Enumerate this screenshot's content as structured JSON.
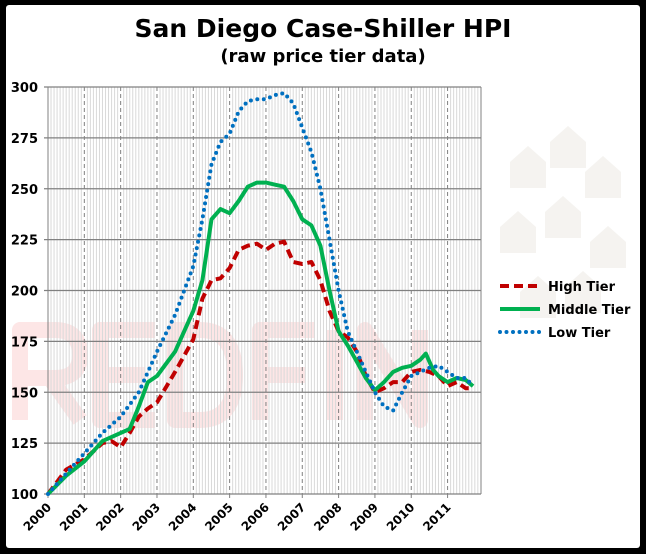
{
  "chart_data": {
    "type": "line",
    "title": "San Diego Case-Shiller HPI",
    "subtitle": "(raw price tier data)",
    "xlabel": "",
    "ylabel": "",
    "xlim": [
      2000,
      2011.92
    ],
    "ylim": [
      100,
      300
    ],
    "x_ticks": [
      "2000",
      "2001",
      "2002",
      "2003",
      "2004",
      "2005",
      "2006",
      "2007",
      "2008",
      "2009",
      "2010",
      "2011"
    ],
    "y_ticks": [
      100,
      125,
      150,
      175,
      200,
      225,
      250,
      275,
      300
    ],
    "grid": "horizontal major lines, dashed yearly and light monthly vertical lines",
    "legend": "right",
    "watermark": "REDFIN",
    "series": [
      {
        "name": "High Tier",
        "color": "#c00000",
        "style": "dashed",
        "x": [
          2000,
          2000.5,
          2001,
          2001.5,
          2001.75,
          2002,
          2002.25,
          2002.5,
          2002.75,
          2003,
          2003.5,
          2004,
          2004.25,
          2004.5,
          2004.75,
          2005,
          2005.25,
          2005.5,
          2005.75,
          2006,
          2006.25,
          2006.5,
          2006.75,
          2007,
          2007.25,
          2007.5,
          2007.75,
          2008,
          2008.25,
          2008.5,
          2008.75,
          2009,
          2009.25,
          2009.5,
          2009.75,
          2010,
          2010.25,
          2010.5,
          2010.75,
          2011,
          2011.25,
          2011.5,
          2011.7
        ],
        "y": [
          100,
          112,
          117,
          125,
          126,
          123,
          130,
          138,
          142,
          145,
          160,
          176,
          196,
          205,
          206,
          211,
          220,
          222,
          223,
          220,
          223,
          224,
          214,
          213,
          214,
          205,
          190,
          180,
          177,
          170,
          158,
          150,
          152,
          155,
          155,
          160,
          161,
          160,
          158,
          153,
          155,
          152,
          152
        ]
      },
      {
        "name": "Middle Tier",
        "color": "#00b050",
        "style": "solid",
        "x": [
          2000,
          2000.5,
          2001,
          2001.5,
          2002,
          2002.25,
          2002.5,
          2002.75,
          2003,
          2003.5,
          2004,
          2004.25,
          2004.5,
          2004.75,
          2005,
          2005.25,
          2005.5,
          2005.75,
          2006,
          2006.25,
          2006.5,
          2006.75,
          2007,
          2007.25,
          2007.5,
          2007.75,
          2008,
          2008.25,
          2008.5,
          2008.75,
          2009,
          2009.25,
          2009.5,
          2009.75,
          2010,
          2010.25,
          2010.4,
          2010.6,
          2010.75,
          2011,
          2011.25,
          2011.5,
          2011.7
        ],
        "y": [
          100,
          109,
          116,
          126,
          130,
          132,
          143,
          155,
          158,
          170,
          190,
          205,
          235,
          240,
          238,
          244,
          251,
          253,
          253,
          252,
          251,
          244,
          235,
          232,
          222,
          200,
          180,
          173,
          165,
          157,
          151,
          155,
          160,
          162,
          163,
          166,
          169,
          161,
          158,
          155,
          157,
          156,
          153
        ]
      },
      {
        "name": "Low Tier",
        "color": "#0070c0",
        "style": "dotted",
        "x": [
          2000,
          2000.5,
          2001,
          2001.5,
          2002,
          2002.5,
          2003,
          2003.5,
          2004,
          2004.25,
          2004.5,
          2004.75,
          2005,
          2005.25,
          2005.5,
          2005.75,
          2006,
          2006.25,
          2006.5,
          2006.75,
          2007,
          2007.25,
          2007.5,
          2007.75,
          2008,
          2008.25,
          2008.5,
          2008.75,
          2009,
          2009.25,
          2009.5,
          2009.75,
          2010,
          2010.25,
          2010.5,
          2010.75,
          2011,
          2011.25,
          2011.5,
          2011.7
        ],
        "y": [
          100,
          110,
          120,
          130,
          138,
          150,
          170,
          188,
          212,
          235,
          262,
          273,
          277,
          288,
          293,
          294,
          294,
          296,
          297,
          292,
          280,
          268,
          250,
          225,
          200,
          180,
          170,
          160,
          150,
          143,
          141,
          150,
          158,
          160,
          162,
          163,
          160,
          157,
          157,
          153
        ]
      }
    ]
  }
}
